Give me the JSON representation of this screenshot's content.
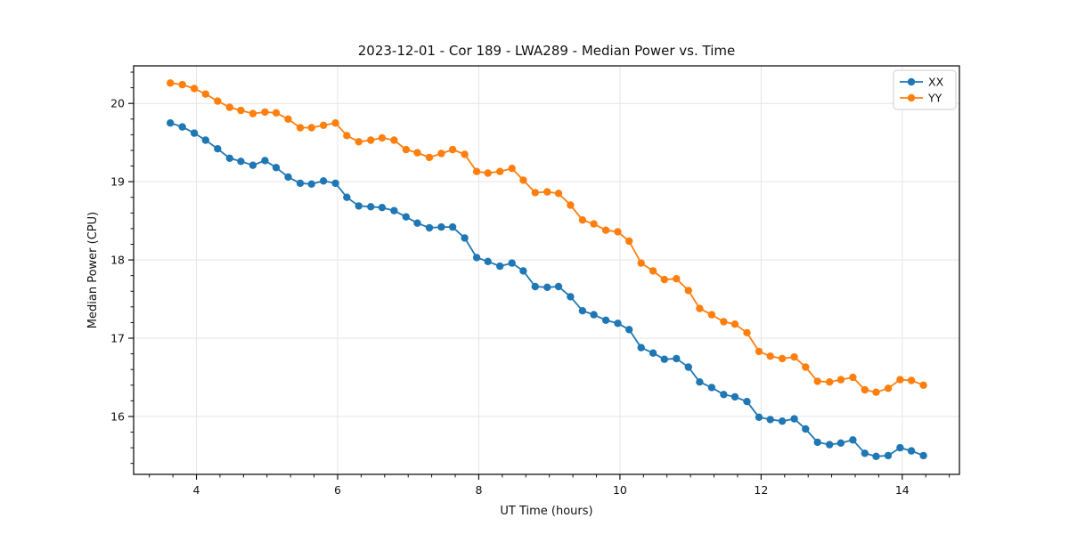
{
  "title": "2023-12-01 - Cor 189 - LWA289 - Median Power vs. Time",
  "legend": {
    "position": "upper right",
    "entries": [
      {
        "label": "XX",
        "color": "#1f77b4"
      },
      {
        "label": "YY",
        "color": "#ff7f0e"
      }
    ]
  },
  "colors": {
    "background": "#ffffff",
    "grid": "#e5e5e5",
    "spine": "#000000",
    "series_xx": "#1f77b4",
    "series_yy": "#ff7f0e"
  },
  "chart_data": {
    "type": "line",
    "title": "2023-12-01 - Cor 189 - LWA289 - Median Power vs. Time",
    "xlabel": "UT Time (hours)",
    "ylabel": "Median Power (CPU)",
    "xlim": [
      3.11,
      14.81
    ],
    "ylim": [
      15.26,
      20.48
    ],
    "x_ticks": [
      4,
      6,
      8,
      10,
      12,
      14
    ],
    "y_ticks": [
      16,
      17,
      18,
      19,
      20
    ],
    "x_minor_step": 0.3333,
    "y_minor_step": 0.2,
    "grid": true,
    "legend_position": "upper right",
    "marker": "circle",
    "x": [
      3.63,
      3.8,
      3.97,
      4.13,
      4.3,
      4.47,
      4.63,
      4.8,
      4.97,
      5.13,
      5.3,
      5.47,
      5.63,
      5.8,
      5.97,
      6.13,
      6.3,
      6.47,
      6.63,
      6.8,
      6.97,
      7.13,
      7.3,
      7.47,
      7.63,
      7.8,
      7.97,
      8.13,
      8.3,
      8.47,
      8.63,
      8.8,
      8.97,
      9.13,
      9.3,
      9.47,
      9.63,
      9.8,
      9.97,
      10.13,
      10.3,
      10.47,
      10.63,
      10.8,
      10.97,
      11.13,
      11.3,
      11.47,
      11.63,
      11.8,
      11.97,
      12.13,
      12.3,
      12.47,
      12.63,
      12.8,
      12.97,
      13.13,
      13.3,
      13.47,
      13.63,
      13.8,
      13.97,
      14.13,
      14.3
    ],
    "series": [
      {
        "name": "XX",
        "color": "#1f77b4",
        "values": [
          19.75,
          19.7,
          19.62,
          19.53,
          19.42,
          19.3,
          19.26,
          19.21,
          19.27,
          19.18,
          19.06,
          18.98,
          18.97,
          19.01,
          18.98,
          18.8,
          18.69,
          18.68,
          18.67,
          18.63,
          18.55,
          18.47,
          18.41,
          18.42,
          18.42,
          18.28,
          18.03,
          17.98,
          17.92,
          17.96,
          17.86,
          17.66,
          17.65,
          17.66,
          17.53,
          17.35,
          17.3,
          17.23,
          17.19,
          17.11,
          16.88,
          16.81,
          16.73,
          16.74,
          16.63,
          16.44,
          16.37,
          16.28,
          16.25,
          16.19,
          15.99,
          15.96,
          15.94,
          15.97,
          15.84,
          15.67,
          15.64,
          15.66,
          15.7,
          15.53,
          15.49,
          15.5,
          15.6,
          15.56,
          15.5
        ]
      },
      {
        "name": "YY",
        "color": "#ff7f0e",
        "values": [
          20.26,
          20.24,
          20.19,
          20.12,
          20.03,
          19.95,
          19.91,
          19.87,
          19.89,
          19.88,
          19.8,
          19.69,
          19.69,
          19.72,
          19.75,
          19.59,
          19.51,
          19.53,
          19.56,
          19.53,
          19.41,
          19.37,
          19.31,
          19.36,
          19.41,
          19.35,
          19.13,
          19.11,
          19.13,
          19.17,
          19.02,
          18.86,
          18.87,
          18.85,
          18.7,
          18.51,
          18.46,
          18.38,
          18.36,
          18.24,
          17.96,
          17.86,
          17.75,
          17.76,
          17.61,
          17.38,
          17.3,
          17.21,
          17.18,
          17.07,
          16.83,
          16.77,
          16.74,
          16.76,
          16.63,
          16.45,
          16.44,
          16.47,
          16.5,
          16.34,
          16.31,
          16.36,
          16.47,
          16.46,
          16.4
        ]
      }
    ]
  }
}
